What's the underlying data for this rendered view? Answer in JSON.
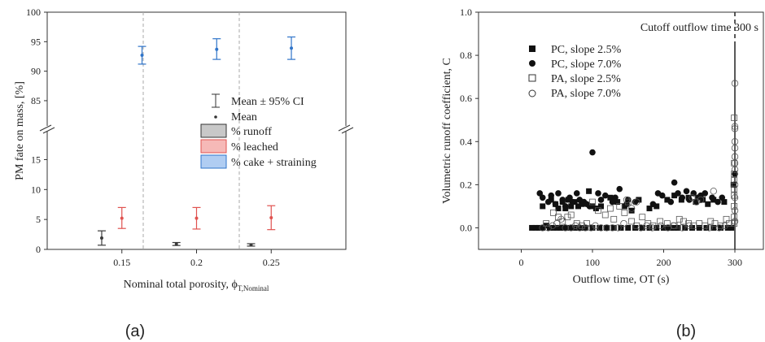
{
  "chart_data": [
    {
      "type": "scatter",
      "panel_label": "(a)",
      "xlabel": "Nominal total porosity, ϕ",
      "xlabel_sub": "T,Nominal",
      "ylabel": "PM fate on mass, [%]",
      "x_tick_labels": [
        "0.15",
        "0.2",
        "0.25"
      ],
      "y_ticks_upper": [
        85,
        90,
        95,
        100
      ],
      "y_ticks_lower": [
        0,
        5,
        10,
        15
      ],
      "ylim_upper": [
        81,
        100
      ],
      "ylim_lower": [
        0,
        19
      ],
      "legend": {
        "placement": "right",
        "mean_ci": "Mean ± 95% CI",
        "mean": "Mean",
        "runoff": "%  runoff",
        "leached": "% leached",
        "cake": "% cake + straining"
      },
      "colors": {
        "runoff": "#3a3a3a",
        "leached": "#e0524f",
        "cake": "#2f74c9",
        "runoff_fill": "#c8c8c8",
        "leached_fill": "#f6b9b7",
        "cake_fill": "#b0cdf2"
      },
      "series": [
        {
          "name": "%  runoff",
          "x": [
            0.15,
            0.2,
            0.25
          ],
          "mean": [
            1.9,
            0.9,
            0.75
          ],
          "lo": [
            0.7,
            0.65,
            0.55
          ],
          "hi": [
            3.1,
            1.15,
            0.95
          ]
        },
        {
          "name": "% leached",
          "x": [
            0.15,
            0.2,
            0.25
          ],
          "mean": [
            5.2,
            5.2,
            5.3
          ],
          "lo": [
            3.5,
            3.4,
            3.3
          ],
          "hi": [
            7.0,
            7.0,
            7.3
          ]
        },
        {
          "name": "% cake + straining",
          "x": [
            0.15,
            0.2,
            0.25
          ],
          "mean": [
            92.7,
            93.7,
            93.9
          ],
          "lo": [
            91.2,
            92.0,
            92.0
          ],
          "hi": [
            94.2,
            95.5,
            95.8
          ]
        }
      ]
    },
    {
      "type": "scatter",
      "panel_label": "(b)",
      "xlabel": "Outflow time, OT (s)",
      "ylabel": "Volumetric runoff coefficient, C",
      "xlim": [
        -60,
        340
      ],
      "ylim": [
        -0.1,
        1.0
      ],
      "x_ticks": [
        0,
        100,
        200,
        300
      ],
      "y_ticks": [
        0.0,
        0.2,
        0.4,
        0.6,
        0.8,
        1.0
      ],
      "y_tick_labels": [
        "0.0",
        "0.2",
        "0.4",
        "0.6",
        "0.8",
        "1.0"
      ],
      "cutoff_x": 300,
      "annotation": "Cutoff outflow time 300 s",
      "legend_placement": "top-left",
      "series": [
        {
          "name": "PC, slope 2.5%",
          "marker": "square-filled",
          "points": [
            [
              15,
              0
            ],
            [
              20,
              0
            ],
            [
              25,
              0
            ],
            [
              30,
              0
            ],
            [
              35,
              0.01
            ],
            [
              40,
              0
            ],
            [
              45,
              0
            ],
            [
              50,
              0
            ],
            [
              55,
              0
            ],
            [
              60,
              0
            ],
            [
              65,
              0
            ],
            [
              70,
              0
            ],
            [
              75,
              0
            ],
            [
              80,
              0
            ],
            [
              85,
              0
            ],
            [
              90,
              0
            ],
            [
              100,
              0
            ],
            [
              110,
              0
            ],
            [
              120,
              0
            ],
            [
              130,
              0
            ],
            [
              140,
              0
            ],
            [
              150,
              0
            ],
            [
              160,
              0
            ],
            [
              170,
              0
            ],
            [
              180,
              0
            ],
            [
              190,
              0
            ],
            [
              200,
              0
            ],
            [
              205,
              0
            ],
            [
              210,
              0
            ],
            [
              215,
              0
            ],
            [
              220,
              0
            ],
            [
              230,
              0
            ],
            [
              240,
              0
            ],
            [
              250,
              0
            ],
            [
              260,
              0
            ],
            [
              270,
              0
            ],
            [
              280,
              0
            ],
            [
              290,
              0
            ],
            [
              295,
              0
            ],
            [
              30,
              0.1
            ],
            [
              42,
              0.13
            ],
            [
              48,
              0.11
            ],
            [
              52,
              0.09
            ],
            [
              58,
              0.12
            ],
            [
              62,
              0.09
            ],
            [
              66,
              0.13
            ],
            [
              70,
              0.1
            ],
            [
              75,
              0.12
            ],
            [
              80,
              0.1
            ],
            [
              85,
              0.11
            ],
            [
              95,
              0.17
            ],
            [
              100,
              0.1
            ],
            [
              105,
              0.09
            ],
            [
              112,
              0.1
            ],
            [
              125,
              0.14
            ],
            [
              135,
              0.12
            ],
            [
              145,
              0.1
            ],
            [
              155,
              0.08
            ],
            [
              165,
              0.13
            ],
            [
              180,
              0.09
            ],
            [
              190,
              0.1
            ],
            [
              205,
              0.13
            ],
            [
              215,
              0.15
            ],
            [
              225,
              0.13
            ],
            [
              235,
              0.14
            ],
            [
              245,
              0.12
            ],
            [
              255,
              0.13
            ],
            [
              262,
              0.11
            ],
            [
              270,
              0.13
            ],
            [
              285,
              0.12
            ],
            [
              298,
              0.2
            ]
          ]
        },
        {
          "name": "PC, slope 7.0%",
          "marker": "circle-filled",
          "points": [
            [
              26,
              0.16
            ],
            [
              30,
              0.14
            ],
            [
              38,
              0.12
            ],
            [
              42,
              0.15
            ],
            [
              48,
              0.11
            ],
            [
              52,
              0.16
            ],
            [
              58,
              0.13
            ],
            [
              62,
              0.1
            ],
            [
              68,
              0.14
            ],
            [
              72,
              0.12
            ],
            [
              78,
              0.16
            ],
            [
              82,
              0.13
            ],
            [
              88,
              0.12
            ],
            [
              92,
              0.11
            ],
            [
              96,
              0.1
            ],
            [
              100,
              0.35
            ],
            [
              108,
              0.16
            ],
            [
              112,
              0.13
            ],
            [
              118,
              0.15
            ],
            [
              128,
              0.12
            ],
            [
              132,
              0.14
            ],
            [
              138,
              0.18
            ],
            [
              148,
              0.11
            ],
            [
              150,
              0.13
            ],
            [
              160,
              0.12
            ],
            [
              185,
              0.11
            ],
            [
              192,
              0.16
            ],
            [
              198,
              0.15
            ],
            [
              210,
              0.12
            ],
            [
              215,
              0.21
            ],
            [
              220,
              0.16
            ],
            [
              226,
              0.14
            ],
            [
              232,
              0.17
            ],
            [
              236,
              0.13
            ],
            [
              242,
              0.16
            ],
            [
              248,
              0.14
            ],
            [
              252,
              0.15
            ],
            [
              258,
              0.16
            ],
            [
              268,
              0.14
            ],
            [
              276,
              0.12
            ],
            [
              282,
              0.14
            ],
            [
              300,
              0.25
            ]
          ]
        },
        {
          "name": "PA, slope 2.5%",
          "marker": "square-open",
          "points": [
            [
              35,
              0.02
            ],
            [
              45,
              0.07
            ],
            [
              52,
              0.05
            ],
            [
              58,
              0.03
            ],
            [
              65,
              0.05
            ],
            [
              70,
              0.06
            ],
            [
              78,
              0.02
            ],
            [
              85,
              0.01
            ],
            [
              92,
              0.02
            ],
            [
              100,
              0.12
            ],
            [
              108,
              0.08
            ],
            [
              118,
              0.06
            ],
            [
              125,
              0.09
            ],
            [
              130,
              0.04
            ],
            [
              138,
              0.1
            ],
            [
              145,
              0.07
            ],
            [
              150,
              0.12
            ],
            [
              155,
              0.03
            ],
            [
              162,
              0.01
            ],
            [
              170,
              0.05
            ],
            [
              178,
              0.02
            ],
            [
              185,
              0.01
            ],
            [
              195,
              0.03
            ],
            [
              205,
              0.02
            ],
            [
              215,
              0.01
            ],
            [
              222,
              0.04
            ],
            [
              228,
              0.03
            ],
            [
              235,
              0.02
            ],
            [
              242,
              0.01
            ],
            [
              250,
              0.02
            ],
            [
              258,
              0.01
            ],
            [
              266,
              0.03
            ],
            [
              272,
              0.02
            ],
            [
              280,
              0.01
            ],
            [
              288,
              0.04
            ],
            [
              292,
              0.02
            ],
            [
              299,
              0.51
            ],
            [
              299,
              0.3
            ],
            [
              299,
              0.22
            ],
            [
              299,
              0.15
            ],
            [
              299,
              0.1
            ],
            [
              299,
              0.05
            ],
            [
              299,
              0.02
            ],
            [
              299,
              0.25
            ],
            [
              299,
              0.18
            ]
          ]
        },
        {
          "name": "PA, slope 7.0%",
          "marker": "circle-open",
          "points": [
            [
              30,
              0.0
            ],
            [
              38,
              0.0
            ],
            [
              44,
              0.01
            ],
            [
              50,
              0.02
            ],
            [
              56,
              0.04
            ],
            [
              62,
              0.0
            ],
            [
              70,
              0.0
            ],
            [
              76,
              0.01
            ],
            [
              82,
              0.0
            ],
            [
              90,
              0.0
            ],
            [
              98,
              0.0
            ],
            [
              104,
              0.01
            ],
            [
              112,
              0.0
            ],
            [
              120,
              0.0
            ],
            [
              128,
              0.0
            ],
            [
              136,
              0.0
            ],
            [
              144,
              0.02
            ],
            [
              148,
              0.13
            ],
            [
              155,
              0.09
            ],
            [
              162,
              0.12
            ],
            [
              168,
              0.0
            ],
            [
              176,
              0.01
            ],
            [
              184,
              0.0
            ],
            [
              196,
              0.01
            ],
            [
              206,
              0.0
            ],
            [
              214,
              0.01
            ],
            [
              226,
              0.0
            ],
            [
              236,
              0.01
            ],
            [
              240,
              0.14
            ],
            [
              246,
              0.12
            ],
            [
              252,
              0.13
            ],
            [
              264,
              0.0
            ],
            [
              270,
              0.17
            ],
            [
              278,
              0.0
            ],
            [
              286,
              0.01
            ],
            [
              300,
              0.67
            ],
            [
              300,
              0.47
            ],
            [
              300,
              0.46
            ],
            [
              300,
              0.4
            ],
            [
              300,
              0.37
            ],
            [
              300,
              0.33
            ],
            [
              300,
              0.3
            ],
            [
              300,
              0.27
            ],
            [
              300,
              0.2
            ],
            [
              300,
              0.14
            ],
            [
              300,
              0.08
            ],
            [
              300,
              0.03
            ]
          ]
        }
      ]
    }
  ]
}
